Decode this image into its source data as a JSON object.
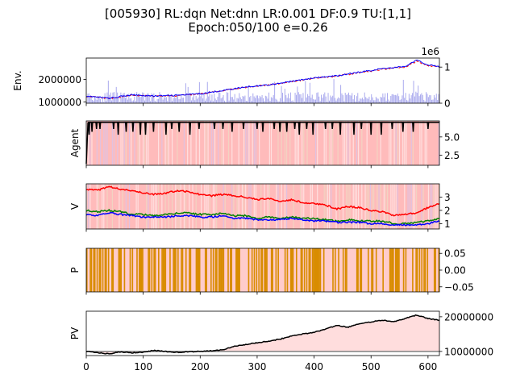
{
  "title_line1": "[005930] RL:dqn Net:dnn LR:0.001 DF:0.9 TU:[1,1]",
  "title_line2": "Epoch:050/100 e=0.26",
  "chart_data": [
    {
      "panel": "env",
      "type": "line",
      "ylabel": "Env.",
      "xlim": [
        0,
        620
      ],
      "ylim": [
        940000,
        2950000
      ],
      "yticks": [
        1000000,
        2000000
      ],
      "ytick_labels": [
        "1000000",
        "2000000"
      ],
      "secondary_axis": {
        "ylim": [
          0,
          1.25
        ],
        "yticks": [
          0,
          1
        ],
        "ytick_labels": [
          "0",
          "1"
        ],
        "offset_label": "1e6"
      },
      "series": [
        {
          "color": "#ff0000",
          "x": [
            0,
            40,
            80,
            120,
            160,
            200,
            240,
            280,
            320,
            360,
            400,
            440,
            480,
            520,
            560,
            580,
            600,
            620
          ],
          "y": [
            1250000,
            1150000,
            1300000,
            1250000,
            1280000,
            1350000,
            1500000,
            1650000,
            1750000,
            1900000,
            2050000,
            2150000,
            2300000,
            2450000,
            2550000,
            2800000,
            2600000,
            2550000
          ]
        },
        {
          "color": "#0000ff",
          "x": [
            0,
            40,
            80,
            120,
            160,
            200,
            240,
            280,
            320,
            360,
            400,
            440,
            480,
            520,
            560,
            580,
            600,
            620
          ],
          "y": [
            1260000,
            1160000,
            1310000,
            1260000,
            1290000,
            1360000,
            1510000,
            1660000,
            1760000,
            1910000,
            2060000,
            2160000,
            2320000,
            2480000,
            2580000,
            2850000,
            2650000,
            2560000
          ]
        }
      ],
      "volume_color": "#aaaaee",
      "volume_max": 500000
    },
    {
      "panel": "agent",
      "type": "line",
      "ylabel": "Agent",
      "xlim": [
        0,
        620
      ],
      "ylim": [
        1.1,
        7.2
      ],
      "yticks": [
        2.5,
        5.0
      ],
      "ytick_labels": [
        "2.5",
        "5.0"
      ],
      "background": "#ffbbbb",
      "line_color": "#000000",
      "typical_value": 7.0,
      "spikes": [
        5,
        10,
        18,
        24,
        48,
        56,
        70,
        82,
        95,
        104,
        118,
        140,
        150,
        163,
        182,
        198,
        225,
        240,
        256,
        276,
        300,
        310,
        330,
        340,
        352,
        366,
        374,
        387,
        398,
        420,
        432,
        446,
        470,
        483,
        500,
        518,
        537,
        556,
        574,
        600
      ]
    },
    {
      "panel": "v",
      "type": "line",
      "ylabel": "V",
      "xlim": [
        0,
        620
      ],
      "ylim": [
        0.6,
        4.0
      ],
      "yticks": [
        1,
        2,
        3
      ],
      "ytick_labels": [
        "1",
        "2",
        "3"
      ],
      "background": "#ffbbbb",
      "series": [
        {
          "color": "#ff0000",
          "x": [
            0,
            20,
            40,
            60,
            80,
            100,
            120,
            140,
            160,
            180,
            200,
            220,
            240,
            260,
            280,
            300,
            320,
            340,
            360,
            380,
            400,
            420,
            440,
            460,
            480,
            500,
            520,
            540,
            560,
            580,
            600,
            620
          ],
          "y": [
            3.6,
            3.5,
            3.8,
            3.6,
            3.5,
            3.3,
            3.2,
            3.3,
            3.5,
            3.4,
            3.2,
            3.1,
            3.2,
            3.1,
            3.0,
            2.8,
            2.9,
            2.7,
            2.8,
            2.6,
            2.5,
            2.4,
            2.1,
            2.3,
            2.2,
            2.0,
            1.9,
            1.6,
            1.7,
            1.8,
            2.2,
            2.5
          ]
        },
        {
          "color": "#008000",
          "x": [
            0,
            20,
            40,
            60,
            80,
            100,
            120,
            140,
            160,
            180,
            200,
            220,
            240,
            260,
            280,
            300,
            320,
            340,
            360,
            380,
            400,
            420,
            440,
            460,
            480,
            500,
            520,
            540,
            560,
            580,
            600,
            620
          ],
          "y": [
            2.0,
            1.9,
            2.0,
            1.9,
            1.7,
            1.7,
            1.6,
            1.7,
            1.8,
            1.8,
            1.7,
            1.7,
            1.8,
            1.6,
            1.6,
            1.4,
            1.5,
            1.4,
            1.5,
            1.4,
            1.4,
            1.3,
            1.2,
            1.3,
            1.2,
            1.2,
            1.2,
            1.0,
            1.0,
            1.1,
            1.2,
            1.4
          ]
        },
        {
          "color": "#0000ff",
          "x": [
            0,
            20,
            40,
            60,
            80,
            100,
            120,
            140,
            160,
            180,
            200,
            220,
            240,
            260,
            280,
            300,
            320,
            340,
            360,
            380,
            400,
            420,
            440,
            460,
            480,
            500,
            520,
            540,
            560,
            580,
            600,
            620
          ],
          "y": [
            1.7,
            1.6,
            1.8,
            1.7,
            1.6,
            1.5,
            1.5,
            1.5,
            1.6,
            1.6,
            1.5,
            1.5,
            1.6,
            1.4,
            1.4,
            1.3,
            1.3,
            1.3,
            1.4,
            1.3,
            1.2,
            1.2,
            1.1,
            1.1,
            1.1,
            1.0,
            1.0,
            0.9,
            0.9,
            0.9,
            1.0,
            1.2
          ]
        }
      ]
    },
    {
      "panel": "p",
      "type": "bar",
      "ylabel": "P",
      "xlim": [
        0,
        620
      ],
      "ylim": [
        -0.065,
        0.065
      ],
      "yticks": [
        -0.05,
        0.0,
        0.05
      ],
      "ytick_labels": [
        "−0.05",
        "0.00",
        "0.05"
      ],
      "background": "#ffcccc",
      "bar_color": "#d98c00"
    },
    {
      "panel": "pv",
      "type": "area",
      "ylabel": "PV",
      "xlim": [
        0,
        620
      ],
      "ylim": [
        8800000,
        21600000
      ],
      "yticks": [
        10000000,
        20000000
      ],
      "ytick_labels": [
        "10000000",
        "20000000"
      ],
      "xticks": [
        0,
        100,
        200,
        300,
        400,
        500,
        600
      ],
      "xtick_labels": [
        "0",
        "100",
        "200",
        "300",
        "400",
        "500",
        "600"
      ],
      "baseline": 10000000,
      "line_color": "#000000",
      "fill_color": "#ffdddd",
      "x": [
        0,
        20,
        40,
        60,
        80,
        100,
        120,
        140,
        160,
        180,
        200,
        220,
        240,
        260,
        280,
        300,
        320,
        340,
        360,
        380,
        400,
        420,
        440,
        460,
        480,
        500,
        520,
        540,
        560,
        580,
        600,
        620
      ],
      "y": [
        10000000,
        9600000,
        9300000,
        9900000,
        9600000,
        9800000,
        10300000,
        10000000,
        9700000,
        9900000,
        10000000,
        10200000,
        10500000,
        11500000,
        12000000,
        12500000,
        13000000,
        13500000,
        14500000,
        15000000,
        15500000,
        16500000,
        17500000,
        17000000,
        18000000,
        18500000,
        19000000,
        18500000,
        19500000,
        20500000,
        19500000,
        19000000
      ]
    }
  ]
}
